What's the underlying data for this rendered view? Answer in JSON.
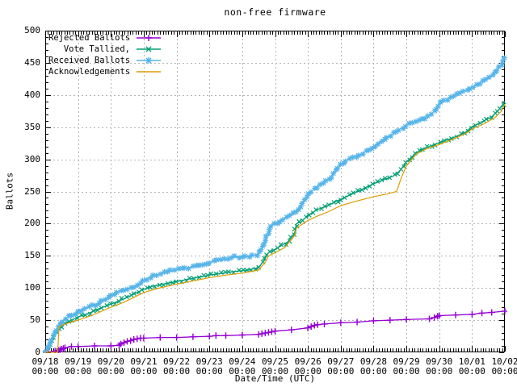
{
  "title": "non-free firmware",
  "axes": {
    "y_label": "Ballots",
    "x_label": "Date/Time (UTC)",
    "y_ticks": [
      0,
      50,
      100,
      150,
      200,
      250,
      300,
      350,
      400,
      450,
      500
    ],
    "x_ticks": [
      {
        "date": "09/18",
        "time": "00:00"
      },
      {
        "date": "09/19",
        "time": "00:00"
      },
      {
        "date": "09/20",
        "time": "00:00"
      },
      {
        "date": "09/21",
        "time": "00:00"
      },
      {
        "date": "09/22",
        "time": "00:00"
      },
      {
        "date": "09/23",
        "time": "00:00"
      },
      {
        "date": "09/24",
        "time": "00:00"
      },
      {
        "date": "09/25",
        "time": "00:00"
      },
      {
        "date": "09/26",
        "time": "00:00"
      },
      {
        "date": "09/27",
        "time": "00:00"
      },
      {
        "date": "09/28",
        "time": "00:00"
      },
      {
        "date": "09/29",
        "time": "00:00"
      },
      {
        "date": "09/30",
        "time": "00:00"
      },
      {
        "date": "10/01",
        "time": "00:00"
      },
      {
        "date": "10/02",
        "time": "00:00"
      }
    ]
  },
  "colors": {
    "rejected": "#9400d3",
    "tallied": "#009e73",
    "received": "#56b4e9",
    "acknowledgements": "#dd9c00",
    "grid": "#b3b3b3",
    "axis": "#000000"
  },
  "legend": [
    {
      "label": "Rejected Ballots",
      "series": "rejected",
      "marker": "plus"
    },
    {
      "label": "Vote Tallied,",
      "series": "tallied",
      "marker": "cross"
    },
    {
      "label": "Received Ballots",
      "series": "received",
      "marker": "star"
    },
    {
      "label": "Acknowledgements",
      "series": "acknowledgements",
      "marker": "none"
    }
  ],
  "chart_data": {
    "type": "line",
    "title": "non-free firmware",
    "xlabel": "Date/Time (UTC)",
    "ylabel": "Ballots",
    "x_unit": "days since 09/18 00:00 UTC",
    "xlim": [
      0,
      14
    ],
    "ylim": [
      0,
      500
    ],
    "grid": "dotted, at every day (x) and every 50 ballots (y)",
    "legend_position": "top-left inside plot",
    "x_tick_dates": [
      "09/18",
      "09/19",
      "09/20",
      "09/21",
      "09/22",
      "09/23",
      "09/24",
      "09/25",
      "09/26",
      "09/27",
      "09/28",
      "09/29",
      "09/30",
      "10/01",
      "10/02"
    ],
    "series": [
      {
        "name": "Rejected Ballots",
        "key": "rejected",
        "marker": "plus",
        "points": [
          [
            0,
            0
          ],
          [
            0.3,
            2
          ],
          [
            0.4,
            3
          ],
          [
            0.45,
            4
          ],
          [
            0.5,
            5
          ],
          [
            0.55,
            6
          ],
          [
            0.6,
            7
          ],
          [
            0.8,
            9
          ],
          [
            1.0,
            9
          ],
          [
            1.5,
            10
          ],
          [
            2.0,
            10
          ],
          [
            2.25,
            11
          ],
          [
            2.3,
            13
          ],
          [
            2.4,
            15
          ],
          [
            2.5,
            17
          ],
          [
            2.6,
            18
          ],
          [
            2.7,
            20
          ],
          [
            2.8,
            21
          ],
          [
            2.9,
            22
          ],
          [
            3.0,
            22
          ],
          [
            3.5,
            23
          ],
          [
            4.0,
            23
          ],
          [
            4.5,
            24
          ],
          [
            5.0,
            25
          ],
          [
            5.2,
            26
          ],
          [
            5.5,
            26
          ],
          [
            6.0,
            27
          ],
          [
            6.5,
            28
          ],
          [
            6.6,
            29
          ],
          [
            6.7,
            30
          ],
          [
            6.8,
            31
          ],
          [
            6.9,
            32
          ],
          [
            7.0,
            33
          ],
          [
            7.5,
            35
          ],
          [
            8.0,
            38
          ],
          [
            8.1,
            40
          ],
          [
            8.2,
            42
          ],
          [
            8.3,
            43
          ],
          [
            8.5,
            44
          ],
          [
            9.0,
            46
          ],
          [
            9.5,
            47
          ],
          [
            10.0,
            49
          ],
          [
            10.5,
            50
          ],
          [
            11.0,
            51
          ],
          [
            11.7,
            52
          ],
          [
            11.85,
            54
          ],
          [
            11.95,
            56
          ],
          [
            12.0,
            57
          ],
          [
            12.5,
            58
          ],
          [
            13.0,
            59
          ],
          [
            13.3,
            61
          ],
          [
            13.6,
            62
          ],
          [
            14.0,
            64
          ]
        ]
      },
      {
        "name": "Vote Tallied,",
        "key": "tallied",
        "marker": "cross",
        "points": [
          [
            0,
            0
          ],
          [
            0.15,
            12
          ],
          [
            0.3,
            28
          ],
          [
            0.45,
            38
          ],
          [
            0.6,
            45
          ],
          [
            0.8,
            50
          ],
          [
            1.0,
            55
          ],
          [
            1.3,
            60
          ],
          [
            1.6,
            67
          ],
          [
            2.0,
            75
          ],
          [
            2.3,
            81
          ],
          [
            2.6,
            88
          ],
          [
            3.0,
            98
          ],
          [
            3.3,
            103
          ],
          [
            3.6,
            106
          ],
          [
            4.0,
            110
          ],
          [
            4.4,
            114
          ],
          [
            4.8,
            118
          ],
          [
            5.0,
            120
          ],
          [
            5.4,
            123
          ],
          [
            5.8,
            126
          ],
          [
            6.2,
            128
          ],
          [
            6.5,
            132
          ],
          [
            6.65,
            142
          ],
          [
            6.8,
            155
          ],
          [
            7.0,
            160
          ],
          [
            7.2,
            166
          ],
          [
            7.4,
            172
          ],
          [
            7.6,
            186
          ],
          [
            7.65,
            200
          ],
          [
            7.8,
            203
          ],
          [
            8.0,
            213
          ],
          [
            8.3,
            222
          ],
          [
            8.6,
            228
          ],
          [
            9.0,
            238
          ],
          [
            9.3,
            245
          ],
          [
            9.6,
            252
          ],
          [
            10.0,
            262
          ],
          [
            10.3,
            268
          ],
          [
            10.6,
            274
          ],
          [
            10.8,
            282
          ],
          [
            11.0,
            296
          ],
          [
            11.3,
            310
          ],
          [
            11.6,
            318
          ],
          [
            12.0,
            326
          ],
          [
            12.4,
            333
          ],
          [
            12.8,
            342
          ],
          [
            13.0,
            351
          ],
          [
            13.3,
            358
          ],
          [
            13.6,
            366
          ],
          [
            13.8,
            376
          ],
          [
            14.0,
            390
          ]
        ]
      },
      {
        "name": "Received Ballots",
        "key": "received",
        "marker": "star",
        "points": [
          [
            0,
            0
          ],
          [
            0.1,
            8
          ],
          [
            0.2,
            20
          ],
          [
            0.3,
            32
          ],
          [
            0.45,
            44
          ],
          [
            0.6,
            52
          ],
          [
            0.8,
            58
          ],
          [
            1.0,
            63
          ],
          [
            1.2,
            68
          ],
          [
            1.5,
            74
          ],
          [
            1.8,
            80
          ],
          [
            2.0,
            88
          ],
          [
            2.2,
            93
          ],
          [
            2.5,
            99
          ],
          [
            2.8,
            104
          ],
          [
            3.0,
            112
          ],
          [
            3.2,
            117
          ],
          [
            3.5,
            122
          ],
          [
            3.8,
            126
          ],
          [
            4.0,
            128
          ],
          [
            4.3,
            131
          ],
          [
            4.6,
            134
          ],
          [
            5.0,
            140
          ],
          [
            5.3,
            143
          ],
          [
            5.6,
            146
          ],
          [
            5.75,
            148
          ],
          [
            6.3,
            150
          ],
          [
            6.5,
            153
          ],
          [
            6.6,
            162
          ],
          [
            6.75,
            180
          ],
          [
            6.9,
            198
          ],
          [
            7.1,
            203
          ],
          [
            7.3,
            208
          ],
          [
            7.5,
            213
          ],
          [
            7.7,
            222
          ],
          [
            7.85,
            232
          ],
          [
            8.0,
            243
          ],
          [
            8.15,
            252
          ],
          [
            8.3,
            258
          ],
          [
            8.5,
            265
          ],
          [
            8.7,
            272
          ],
          [
            8.9,
            285
          ],
          [
            9.1,
            297
          ],
          [
            9.3,
            302
          ],
          [
            9.5,
            305
          ],
          [
            9.7,
            310
          ],
          [
            10.0,
            320
          ],
          [
            10.2,
            327
          ],
          [
            10.4,
            333
          ],
          [
            10.6,
            340
          ],
          [
            10.8,
            347
          ],
          [
            11.0,
            353
          ],
          [
            11.2,
            357
          ],
          [
            11.5,
            362
          ],
          [
            11.8,
            372
          ],
          [
            12.0,
            385
          ],
          [
            12.2,
            392
          ],
          [
            12.5,
            400
          ],
          [
            12.8,
            407
          ],
          [
            13.0,
            412
          ],
          [
            13.3,
            420
          ],
          [
            13.5,
            426
          ],
          [
            13.7,
            434
          ],
          [
            13.85,
            444
          ],
          [
            14.0,
            458
          ]
        ]
      },
      {
        "name": "Acknowledgements",
        "key": "acknowledgements",
        "marker": "none",
        "points": [
          [
            0,
            0
          ],
          [
            0.38,
            0
          ],
          [
            0.42,
            40
          ],
          [
            0.6,
            44
          ],
          [
            0.8,
            47
          ],
          [
            1.0,
            50
          ],
          [
            1.4,
            57
          ],
          [
            2.0,
            70
          ],
          [
            2.4,
            78
          ],
          [
            3.0,
            93
          ],
          [
            3.4,
            99
          ],
          [
            4.0,
            106
          ],
          [
            4.5,
            111
          ],
          [
            5.0,
            116
          ],
          [
            5.5,
            120
          ],
          [
            6.0,
            123
          ],
          [
            6.5,
            128
          ],
          [
            6.7,
            140
          ],
          [
            6.8,
            150
          ],
          [
            7.0,
            155
          ],
          [
            7.3,
            163
          ],
          [
            7.6,
            182
          ],
          [
            7.65,
            193
          ],
          [
            8.0,
            205
          ],
          [
            8.3,
            212
          ],
          [
            8.6,
            218
          ],
          [
            9.0,
            228
          ],
          [
            9.4,
            234
          ],
          [
            10.0,
            242
          ],
          [
            10.4,
            246
          ],
          [
            10.7,
            250
          ],
          [
            10.85,
            272
          ],
          [
            11.0,
            290
          ],
          [
            11.3,
            308
          ],
          [
            11.6,
            316
          ],
          [
            12.0,
            323
          ],
          [
            12.4,
            331
          ],
          [
            12.8,
            340
          ],
          [
            13.0,
            347
          ],
          [
            13.4,
            356
          ],
          [
            13.7,
            365
          ],
          [
            13.9,
            375
          ],
          [
            14.0,
            386
          ]
        ]
      }
    ]
  }
}
